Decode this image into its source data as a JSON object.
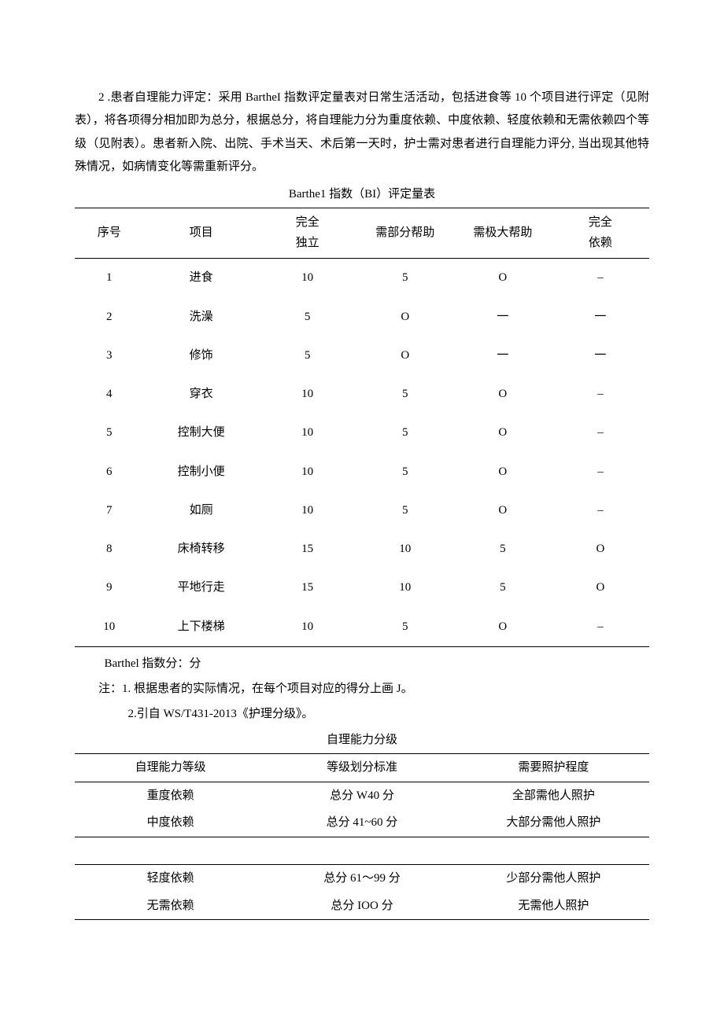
{
  "paragraph": "2 .患者自理能力评定：采用 BartheI 指数评定量表对日常生活活动，包括进食等 10 个项目进行评定（见附表），将各项得分相加即为总分，根据总分，将自理能力分为重度依赖、中度依赖、轻度依赖和无需依赖四个等级（见附表）。患者新入院、出院、手术当天、术后第一天时，护士需对患者进行自理能力评分, 当出现其他特殊情况，如病情变化等需重新评分。",
  "biTable": {
    "title": "Barthe1 指数（BI）评定量表",
    "headers": {
      "num": "序号",
      "item": "项目",
      "c1": "完全\n独立",
      "c2": "需部分帮助",
      "c3": "需极大帮助",
      "c4": "完全\n依赖"
    },
    "rows": [
      {
        "num": "1",
        "item": "进食",
        "c1": "10",
        "c2": "5",
        "c3": "O",
        "c4": "–"
      },
      {
        "num": "2",
        "item": "洗澡",
        "c1": "5",
        "c2": "O",
        "c3": "一",
        "c4": "一"
      },
      {
        "num": "3",
        "item": "修饰",
        "c1": "5",
        "c2": "O",
        "c3": "一",
        "c4": "一"
      },
      {
        "num": "4",
        "item": "穿衣",
        "c1": "10",
        "c2": "5",
        "c3": "O",
        "c4": "–"
      },
      {
        "num": "5",
        "item": "控制大便",
        "c1": "10",
        "c2": "5",
        "c3": "O",
        "c4": "–"
      },
      {
        "num": "6",
        "item": "控制小便",
        "c1": "10",
        "c2": "5",
        "c3": "O",
        "c4": "–"
      },
      {
        "num": "7",
        "item": "如厕",
        "c1": "10",
        "c2": "5",
        "c3": "O",
        "c4": "–"
      },
      {
        "num": "8",
        "item": "床椅转移",
        "c1": "15",
        "c2": "10",
        "c3": "5",
        "c4": "O"
      },
      {
        "num": "9",
        "item": "平地行走",
        "c1": "15",
        "c2": "10",
        "c3": "5",
        "c4": "O"
      },
      {
        "num": "10",
        "item": "上下楼梯",
        "c1": "10",
        "c2": "5",
        "c3": "O",
        "c4": "–"
      }
    ]
  },
  "scoreLine": "Barthel 指数分：分",
  "note1": "注：1. 根据患者的实际情况，在每个项目对应的得分上画 J。",
  "note2": "2.引自 WS/T431-2013《护理分级》。",
  "gradeTable": {
    "title": "自理能力分级",
    "headers": {
      "level": "自理能力等级",
      "criteria": "等级划分标准",
      "care": "需要照护程度"
    },
    "rows": [
      {
        "level": "重度依赖",
        "criteria": "总分 W40 分",
        "care": "全部需他人照护"
      },
      {
        "level": "中度依赖",
        "criteria": "总分 41~60 分",
        "care": "大部分需他人照护"
      },
      {
        "level": "轻度依赖",
        "criteria": "总分 61～99 分",
        "care": "少部分需他人照护"
      },
      {
        "level": "无需依赖",
        "criteria": "总分 IOO 分",
        "care": "无需他人照护"
      }
    ]
  }
}
